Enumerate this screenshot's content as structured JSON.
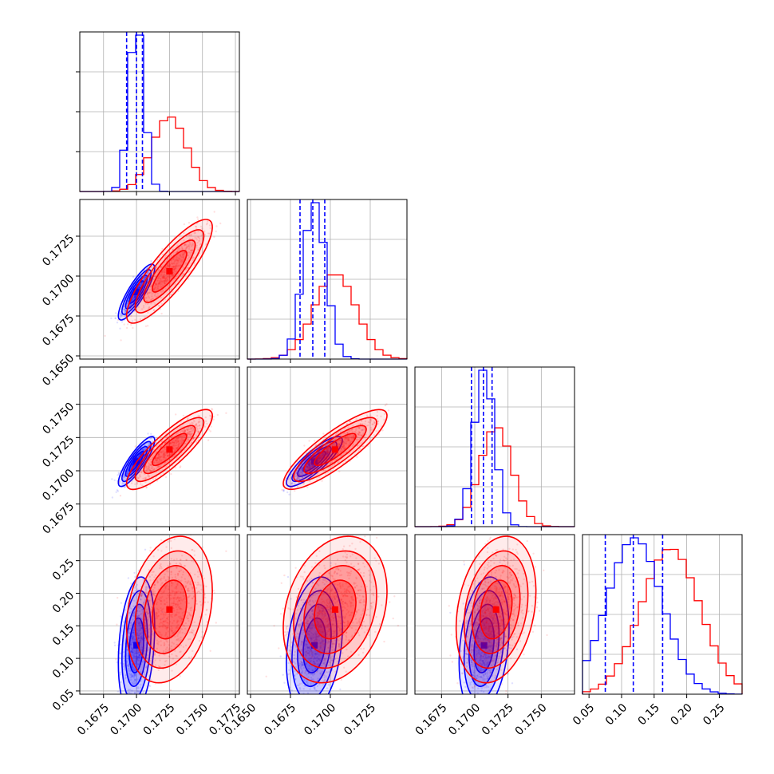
{
  "chart_data": {
    "type": "corner",
    "n_params": 4,
    "colors": {
      "blue": "#0000ff",
      "red": "#ff0000",
      "grid": "#b0b0b0"
    },
    "series": [
      {
        "color": "#0000ff",
        "means": [
          0.17,
          0.169,
          0.1707,
          0.12
        ],
        "sds": [
          0.00055,
          0.0007,
          0.00075,
          0.042
        ],
        "quantiles": [
          [
            0.16925,
            0.17,
            0.17045
          ],
          [
            0.1681,
            0.1689,
            0.16965
          ],
          [
            0.16975,
            0.17065,
            0.1713
          ],
          [
            0.075,
            0.118,
            0.163
          ]
        ]
      },
      {
        "color": "#ff0000",
        "means": [
          0.1725,
          0.1703,
          0.1716,
          0.175
        ],
        "sds": [
          0.0013,
          0.0013,
          0.0012,
          0.045
        ]
      }
    ],
    "ranges": [
      [
        0.1657,
        0.1778
      ],
      [
        0.1648,
        0.1748
      ],
      [
        0.1655,
        0.1775
      ],
      [
        0.04,
        0.285
      ]
    ],
    "y_ranges": [
      null,
      [
        0.1648,
        0.1748
      ],
      [
        0.1658,
        0.1778
      ],
      [
        0.045,
        0.29
      ]
    ],
    "x_ticks": [
      {
        "values": [
          0.1675,
          0.17,
          0.1725,
          0.175,
          0.1775
        ],
        "labels": [
          "0.1675",
          "0.1700",
          "0.1725",
          "0.1750",
          "0.1775"
        ]
      },
      {
        "values": [
          0.165,
          0.1675,
          0.17,
          0.1725
        ],
        "labels": [
          "0.1650",
          "0.1675",
          "0.1700",
          "0.1725"
        ]
      },
      {
        "values": [
          0.1675,
          0.17,
          0.1725,
          0.175
        ],
        "labels": [
          "0.1675",
          "0.1700",
          "0.1725",
          "0.1750"
        ]
      },
      {
        "values": [
          0.05,
          0.1,
          0.15,
          0.2,
          0.25
        ],
        "labels": [
          "0.05",
          "0.10",
          "0.15",
          "0.20",
          "0.25"
        ]
      }
    ],
    "y_ticks": [
      null,
      {
        "values": [
          0.165,
          0.1675,
          0.17,
          0.1725
        ],
        "labels": [
          "0.1650",
          "0.1675",
          "0.1700",
          "0.1725"
        ]
      },
      {
        "values": [
          0.1675,
          0.17,
          0.1725,
          0.175
        ],
        "labels": [
          "0.1675",
          "0.1700",
          "0.1725",
          "0.1750"
        ]
      },
      {
        "values": [
          0.05,
          0.1,
          0.15,
          0.2,
          0.25
        ],
        "labels": [
          "0.05",
          "0.10",
          "0.15",
          "0.20",
          "0.25"
        ]
      }
    ],
    "grid": true
  }
}
